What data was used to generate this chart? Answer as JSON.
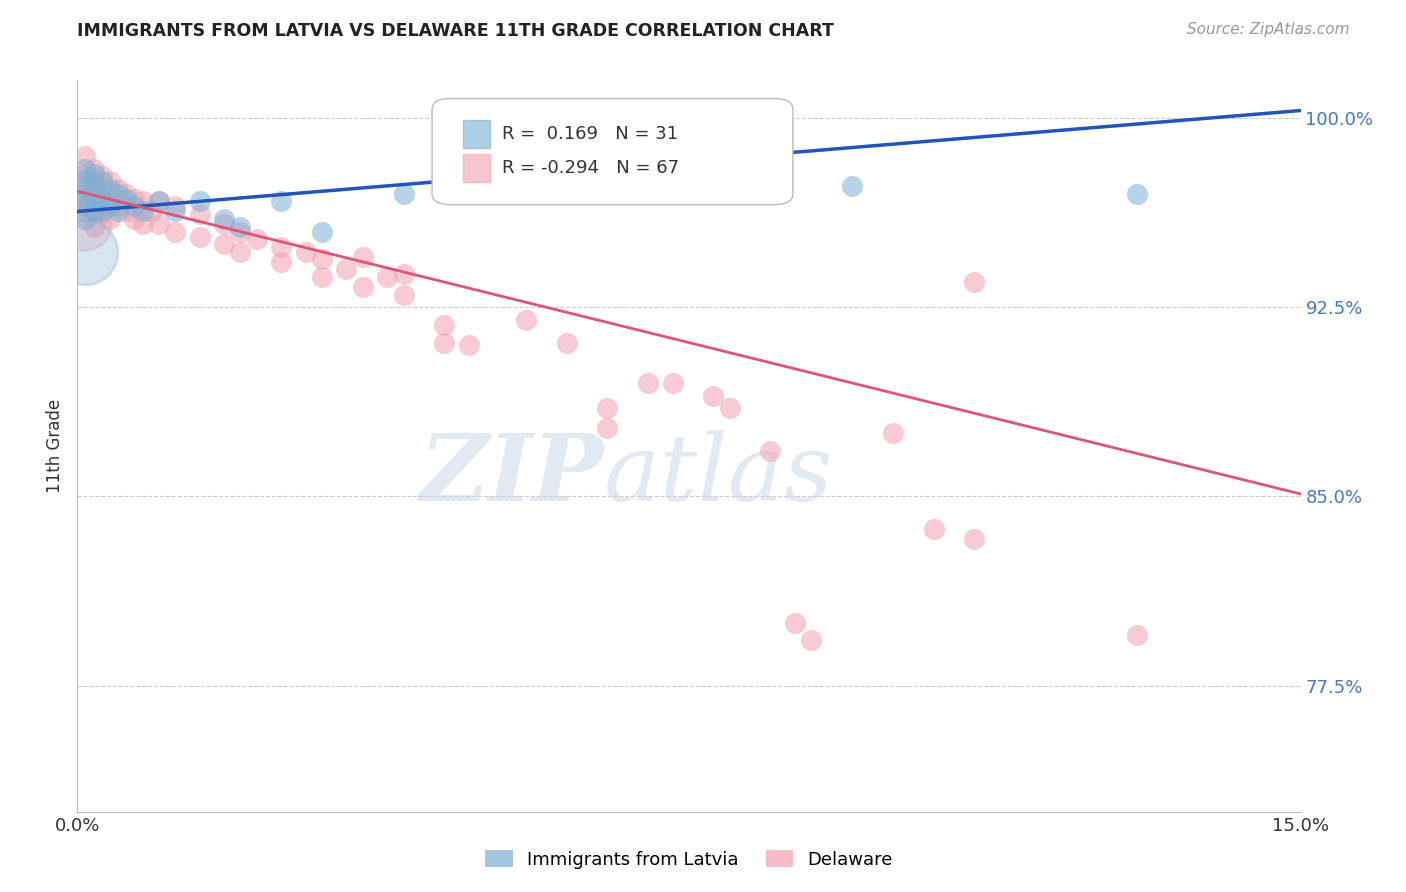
{
  "title": "IMMIGRANTS FROM LATVIA VS DELAWARE 11TH GRADE CORRELATION CHART",
  "source": "Source: ZipAtlas.com",
  "ylabel": "11th Grade",
  "xmin": 0.0,
  "xmax": 0.15,
  "ymin": 0.725,
  "ymax": 1.015,
  "yticks": [
    0.775,
    0.85,
    0.925,
    1.0
  ],
  "ytick_labels": [
    "77.5%",
    "85.0%",
    "92.5%",
    "100.0%"
  ],
  "legend_blue_label": "Immigrants from Latvia",
  "legend_pink_label": "Delaware",
  "blue_R": "0.169",
  "blue_N": "31",
  "pink_R": "-0.294",
  "pink_N": "67",
  "blue_color": "#7BAFD4",
  "pink_color": "#F4A0B0",
  "blue_line_color": "#2255BB",
  "pink_line_color": "#E05575",
  "blue_points": [
    [
      0.001,
      0.98
    ],
    [
      0.001,
      0.975
    ],
    [
      0.001,
      0.972
    ],
    [
      0.001,
      0.968
    ],
    [
      0.001,
      0.965
    ],
    [
      0.001,
      0.96
    ],
    [
      0.002,
      0.978
    ],
    [
      0.002,
      0.973
    ],
    [
      0.002,
      0.968
    ],
    [
      0.002,
      0.963
    ],
    [
      0.003,
      0.975
    ],
    [
      0.003,
      0.968
    ],
    [
      0.003,
      0.963
    ],
    [
      0.004,
      0.972
    ],
    [
      0.004,
      0.965
    ],
    [
      0.005,
      0.97
    ],
    [
      0.005,
      0.963
    ],
    [
      0.006,
      0.968
    ],
    [
      0.007,
      0.965
    ],
    [
      0.008,
      0.963
    ],
    [
      0.01,
      0.967
    ],
    [
      0.012,
      0.963
    ],
    [
      0.015,
      0.967
    ],
    [
      0.018,
      0.96
    ],
    [
      0.02,
      0.957
    ],
    [
      0.025,
      0.967
    ],
    [
      0.03,
      0.955
    ],
    [
      0.04,
      0.97
    ],
    [
      0.05,
      0.98
    ],
    [
      0.095,
      0.973
    ],
    [
      0.13,
      0.97
    ]
  ],
  "large_blue_point": [
    0.001,
    0.947
  ],
  "pink_points": [
    [
      0.001,
      0.985
    ],
    [
      0.001,
      0.978
    ],
    [
      0.001,
      0.973
    ],
    [
      0.001,
      0.968
    ],
    [
      0.001,
      0.963
    ],
    [
      0.002,
      0.98
    ],
    [
      0.002,
      0.975
    ],
    [
      0.002,
      0.97
    ],
    [
      0.002,
      0.963
    ],
    [
      0.002,
      0.957
    ],
    [
      0.003,
      0.977
    ],
    [
      0.003,
      0.972
    ],
    [
      0.003,
      0.967
    ],
    [
      0.003,
      0.962
    ],
    [
      0.004,
      0.975
    ],
    [
      0.004,
      0.968
    ],
    [
      0.004,
      0.96
    ],
    [
      0.005,
      0.972
    ],
    [
      0.005,
      0.965
    ],
    [
      0.006,
      0.97
    ],
    [
      0.006,
      0.963
    ],
    [
      0.007,
      0.968
    ],
    [
      0.007,
      0.96
    ],
    [
      0.008,
      0.967
    ],
    [
      0.008,
      0.958
    ],
    [
      0.009,
      0.963
    ],
    [
      0.01,
      0.967
    ],
    [
      0.01,
      0.958
    ],
    [
      0.012,
      0.965
    ],
    [
      0.012,
      0.955
    ],
    [
      0.015,
      0.962
    ],
    [
      0.015,
      0.953
    ],
    [
      0.018,
      0.958
    ],
    [
      0.018,
      0.95
    ],
    [
      0.02,
      0.955
    ],
    [
      0.02,
      0.947
    ],
    [
      0.022,
      0.952
    ],
    [
      0.025,
      0.949
    ],
    [
      0.025,
      0.943
    ],
    [
      0.028,
      0.947
    ],
    [
      0.03,
      0.944
    ],
    [
      0.03,
      0.937
    ],
    [
      0.033,
      0.94
    ],
    [
      0.035,
      0.945
    ],
    [
      0.035,
      0.933
    ],
    [
      0.038,
      0.937
    ],
    [
      0.04,
      0.938
    ],
    [
      0.04,
      0.93
    ],
    [
      0.045,
      0.918
    ],
    [
      0.045,
      0.911
    ],
    [
      0.048,
      0.91
    ],
    [
      0.055,
      0.92
    ],
    [
      0.06,
      0.911
    ],
    [
      0.065,
      0.885
    ],
    [
      0.065,
      0.877
    ],
    [
      0.07,
      0.895
    ],
    [
      0.073,
      0.895
    ],
    [
      0.078,
      0.89
    ],
    [
      0.08,
      0.885
    ],
    [
      0.085,
      0.868
    ],
    [
      0.088,
      0.8
    ],
    [
      0.09,
      0.793
    ],
    [
      0.1,
      0.875
    ],
    [
      0.105,
      0.837
    ],
    [
      0.11,
      0.833
    ],
    [
      0.11,
      0.935
    ],
    [
      0.13,
      0.795
    ]
  ],
  "blue_line_x": [
    0.0,
    0.15
  ],
  "blue_line_y": [
    0.963,
    1.003
  ],
  "pink_line_x": [
    0.0,
    0.15
  ],
  "pink_line_y": [
    0.971,
    0.851
  ],
  "watermark_zip": "ZIP",
  "watermark_atlas": "atlas"
}
